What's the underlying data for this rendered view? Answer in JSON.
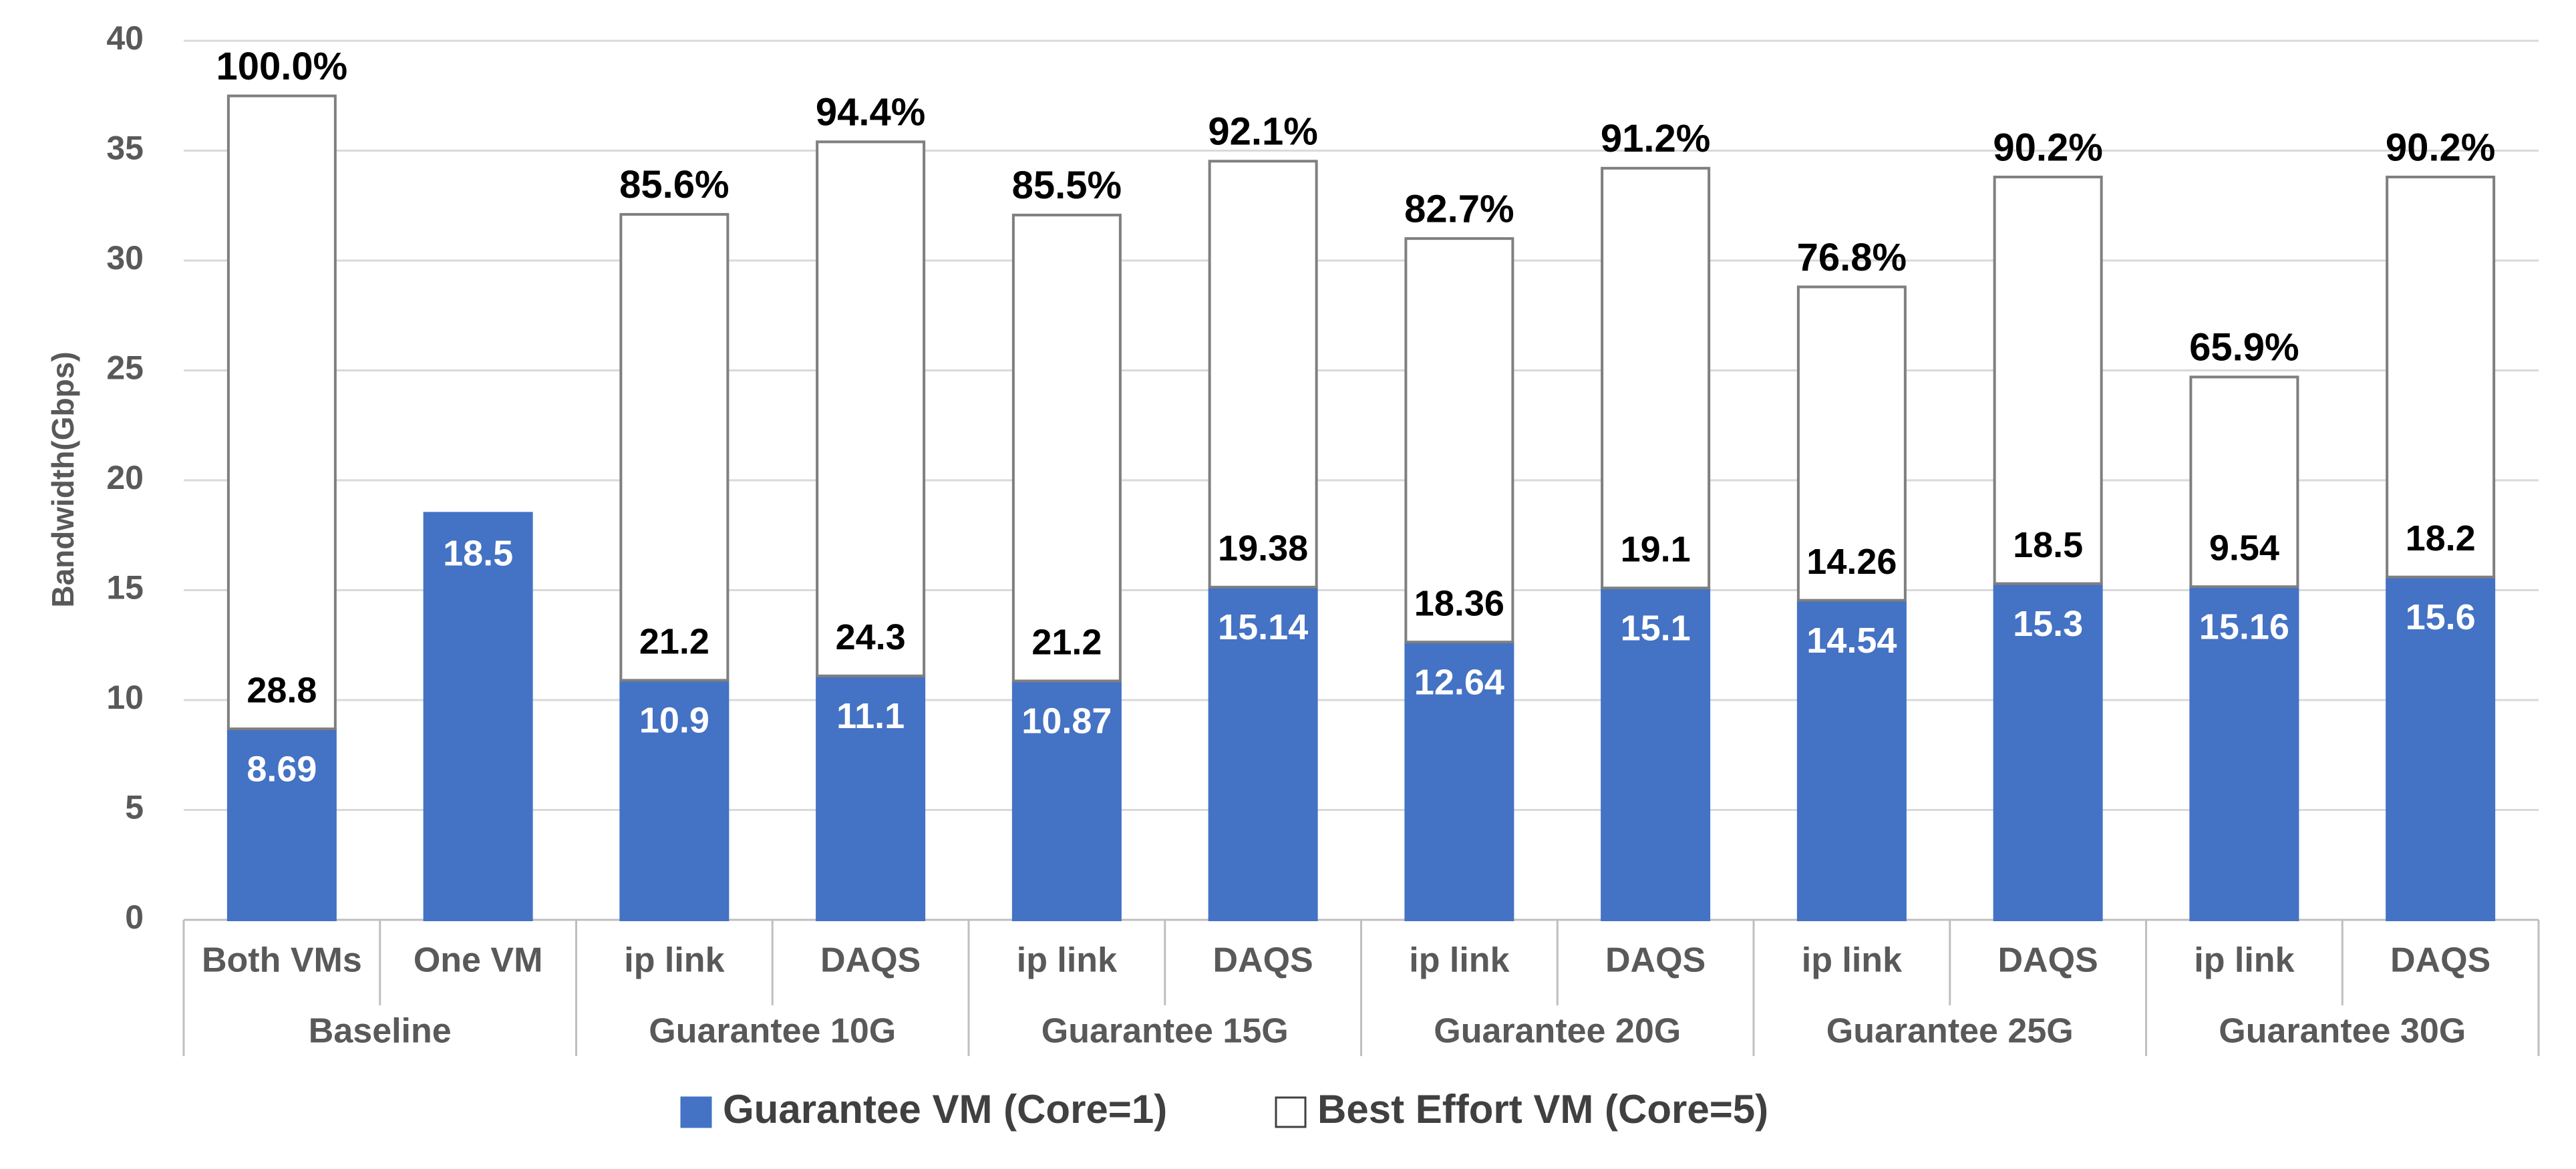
{
  "chart_data": {
    "type": "stacked-bar",
    "y_axis_label": "Bandwidth(Gbps)",
    "ylim": [
      0,
      40
    ],
    "yticks": [
      0,
      5,
      10,
      15,
      20,
      25,
      30,
      35,
      40
    ],
    "grid": true,
    "legend": "bottom",
    "groups": [
      {
        "name": "Baseline",
        "categories": [
          "Both VMs",
          "One VM"
        ]
      },
      {
        "name": "Guarantee 10G",
        "categories": [
          "ip link",
          "DAQS"
        ]
      },
      {
        "name": "Guarantee 15G",
        "categories": [
          "ip link",
          "DAQS"
        ]
      },
      {
        "name": "Guarantee 20G",
        "categories": [
          "ip link",
          "DAQS"
        ]
      },
      {
        "name": "Guarantee 25G",
        "categories": [
          "ip link",
          "DAQS"
        ]
      },
      {
        "name": "Guarantee 30G",
        "categories": [
          "ip link",
          "DAQS"
        ]
      }
    ],
    "series": [
      {
        "name": "Guarantee VM (Core=1)",
        "color": "#4472c4",
        "values": [
          8.69,
          18.5,
          10.9,
          11.1,
          10.87,
          15.14,
          12.64,
          15.1,
          14.54,
          15.3,
          15.16,
          15.6
        ]
      },
      {
        "name": "Best Effort VM (Core=5)",
        "color": "#ffffff",
        "values": [
          28.8,
          null,
          21.2,
          24.3,
          21.2,
          19.38,
          18.36,
          19.1,
          14.26,
          18.5,
          9.54,
          18.2
        ]
      }
    ],
    "total_labels": {
      "values": [
        100.0,
        null,
        85.6,
        94.4,
        85.5,
        92.1,
        82.7,
        91.2,
        76.8,
        90.2,
        65.9,
        90.2
      ],
      "value_labels": [
        "100.0%",
        null,
        "85.6%",
        "94.4%",
        "85.5%",
        "92.1%",
        "82.7%",
        "91.2%",
        "76.8%",
        "90.2%",
        "65.9%",
        "90.2%"
      ]
    }
  }
}
